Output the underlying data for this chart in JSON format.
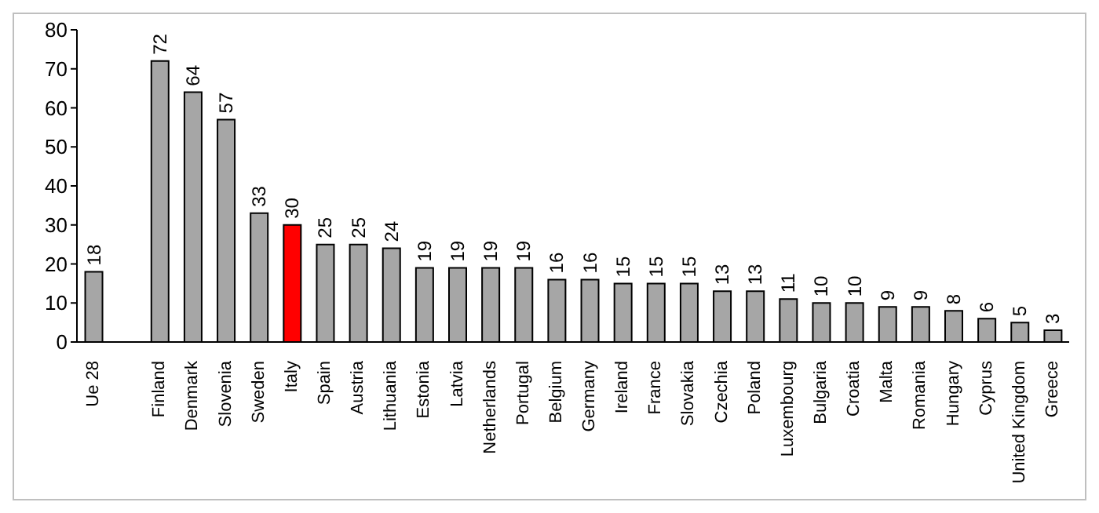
{
  "chart_data": {
    "type": "bar",
    "categories": [
      "Ue 28",
      null,
      "Finland",
      "Denmark",
      "Slovenia",
      "Sweden",
      "Italy",
      "Spain",
      "Austria",
      "Lithuania",
      "Estonia",
      "Latvia",
      "Netherlands",
      "Portugal",
      "Belgium",
      "Germany",
      "Ireland",
      "France",
      "Slovakia",
      "Czechia",
      "Poland",
      "Luxembourg",
      "Bulgaria",
      "Croatia",
      "Malta",
      "Romania",
      "Hungary",
      "Cyprus",
      "United Kingdom",
      "Greece"
    ],
    "values": [
      18,
      null,
      72,
      64,
      57,
      33,
      30,
      25,
      25,
      24,
      19,
      19,
      19,
      19,
      16,
      16,
      15,
      15,
      15,
      13,
      13,
      11,
      10,
      10,
      9,
      9,
      8,
      6,
      5,
      3
    ],
    "colors": [
      "#a6a6a6",
      "#a6a6a6",
      "#a6a6a6",
      "#a6a6a6",
      "#a6a6a6",
      "#a6a6a6",
      "#ff0000",
      "#a6a6a6",
      "#a6a6a6",
      "#a6a6a6",
      "#a6a6a6",
      "#a6a6a6",
      "#a6a6a6",
      "#a6a6a6",
      "#a6a6a6",
      "#a6a6a6",
      "#a6a6a6",
      "#a6a6a6",
      "#a6a6a6",
      "#a6a6a6",
      "#a6a6a6",
      "#a6a6a6",
      "#a6a6a6",
      "#a6a6a6",
      "#a6a6a6",
      "#a6a6a6",
      "#a6a6a6",
      "#a6a6a6",
      "#a6a6a6",
      "#a6a6a6"
    ],
    "ylim": [
      0,
      80
    ],
    "yticks": [
      0,
      10,
      20,
      30,
      40,
      50,
      60,
      70,
      80
    ],
    "data_labels": true,
    "grid": false
  }
}
